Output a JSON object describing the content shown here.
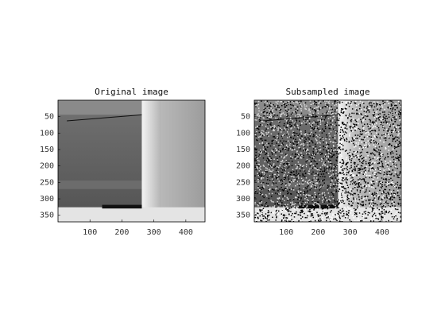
{
  "chart_data": [
    {
      "type": "image",
      "title": "Original image",
      "xlim": [
        0,
        460
      ],
      "ylim": [
        0,
        370
      ],
      "xticks": [
        100,
        200,
        300,
        400
      ],
      "yticks": [
        50,
        100,
        150,
        200,
        250,
        300,
        350
      ],
      "noise": false
    },
    {
      "type": "image",
      "title": "Subsampled image",
      "xlim": [
        0,
        460
      ],
      "ylim": [
        0,
        370
      ],
      "xticks": [
        100,
        200,
        300,
        400
      ],
      "yticks": [
        50,
        100,
        150,
        200,
        250,
        300,
        350
      ],
      "noise": true
    }
  ]
}
